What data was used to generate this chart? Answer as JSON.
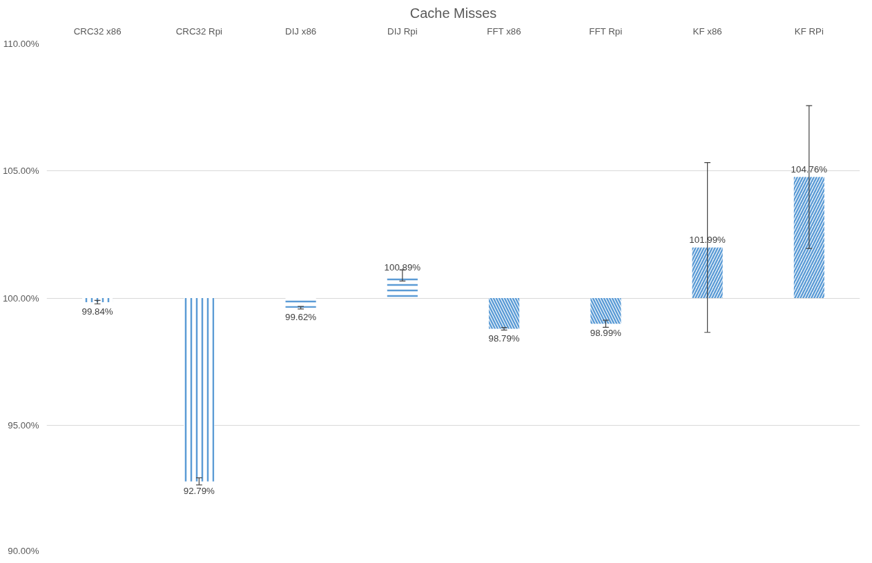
{
  "chart_data": {
    "type": "bar",
    "title": "Cache Misses",
    "categories": [
      "CRC32 x86",
      "CRC32 Rpi",
      "DIJ x86",
      "DIJ Rpi",
      "FFT x86",
      "FFT Rpi",
      "KF x86",
      "KF RPi"
    ],
    "base": [
      100,
      100,
      100,
      100,
      100,
      100,
      100,
      100
    ],
    "values": [
      -0.16,
      -7.21,
      -0.38,
      0.89,
      -1.21,
      -1.01,
      1.99,
      4.76
    ],
    "value_labels": [
      "99.84%",
      "92.79%",
      "99.62%",
      "100.89%",
      "98.79%",
      "98.99%",
      "101.99%",
      "104.76%"
    ],
    "errors": [
      0.07,
      0.14,
      0.05,
      0.22,
      0.05,
      0.14,
      3.34,
      2.81
    ],
    "color": "#5b9bd5",
    "ylim": [
      90,
      110
    ],
    "yticks": [
      {
        "value": 90,
        "label": "90.00%"
      },
      {
        "value": 95,
        "label": "95.00%"
      },
      {
        "value": 100,
        "label": "100.00%"
      },
      {
        "value": 105,
        "label": "105.00%"
      },
      {
        "value": 110,
        "label": "110.00%"
      }
    ],
    "grid": "y"
  }
}
